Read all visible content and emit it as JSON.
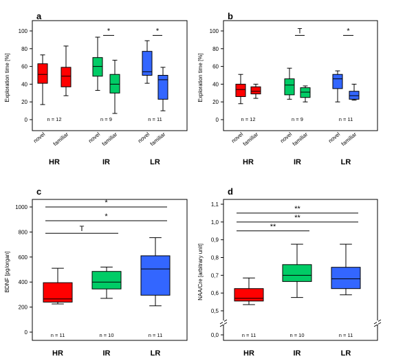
{
  "chart_data": [
    {
      "type": "box",
      "panel": "a",
      "ylabel": "Exploration time [%]",
      "ylim": [
        0,
        100
      ],
      "yticks": [
        "0",
        "20",
        "40",
        "60",
        "80",
        "100"
      ],
      "groups": [
        "HR",
        "IR",
        "LR"
      ],
      "conditions": [
        "novel",
        "familiar"
      ],
      "n_labels": [
        "n = 12",
        "n = 9",
        "n = 11"
      ],
      "boxes": [
        {
          "group": "HR",
          "condition": "novel",
          "color": "#ff0000",
          "min": 17,
          "q1": 41,
          "median": 51,
          "q3": 63,
          "max": 73
        },
        {
          "group": "HR",
          "condition": "familiar",
          "color": "#ff0000",
          "min": 27,
          "q1": 37,
          "median": 49,
          "q3": 59,
          "max": 83
        },
        {
          "group": "IR",
          "condition": "novel",
          "color": "#00cc66",
          "min": 33,
          "q1": 49,
          "median": 60,
          "q3": 70,
          "max": 93
        },
        {
          "group": "IR",
          "condition": "familiar",
          "color": "#00cc66",
          "min": 7,
          "q1": 30,
          "median": 40,
          "q3": 51,
          "max": 67
        },
        {
          "group": "LR",
          "condition": "novel",
          "color": "#3366ff",
          "min": 41,
          "q1": 50,
          "median": 54,
          "q3": 77,
          "max": 89
        },
        {
          "group": "LR",
          "condition": "familiar",
          "color": "#3366ff",
          "min": 10,
          "q1": 23,
          "median": 45,
          "q3": 50,
          "max": 59
        }
      ],
      "significance": [
        {
          "label": "*",
          "group": "IR",
          "y": 95
        },
        {
          "label": "*",
          "group": "LR",
          "y": 95
        }
      ]
    },
    {
      "type": "box",
      "panel": "b",
      "ylabel": "Exploration time [%]",
      "ylim": [
        0,
        100
      ],
      "yticks": [
        "0",
        "20",
        "40",
        "60",
        "80",
        "100"
      ],
      "groups": [
        "HR",
        "IR",
        "LR"
      ],
      "conditions": [
        "novel",
        "familiar"
      ],
      "n_labels": [
        "n = 12",
        "n = 9",
        "n = 11"
      ],
      "boxes": [
        {
          "group": "HR",
          "condition": "novel",
          "color": "#ff0000",
          "min": 18,
          "q1": 26,
          "median": 34,
          "q3": 40,
          "max": 51
        },
        {
          "group": "HR",
          "condition": "familiar",
          "color": "#ff0000",
          "min": 24,
          "q1": 29,
          "median": 32,
          "q3": 37,
          "max": 40
        },
        {
          "group": "IR",
          "condition": "novel",
          "color": "#00cc66",
          "min": 23,
          "q1": 28,
          "median": 39,
          "q3": 46,
          "max": 58
        },
        {
          "group": "IR",
          "condition": "familiar",
          "color": "#00cc66",
          "min": 20,
          "q1": 25,
          "median": 31,
          "q3": 36,
          "max": 38
        },
        {
          "group": "LR",
          "condition": "novel",
          "color": "#3366ff",
          "min": 20,
          "q1": 35,
          "median": 46,
          "q3": 51,
          "max": 55
        },
        {
          "group": "LR",
          "condition": "familiar",
          "color": "#3366ff",
          "min": 22,
          "q1": 23,
          "median": 27,
          "q3": 32,
          "max": 40
        }
      ],
      "significance": [
        {
          "label": "T",
          "group": "IR",
          "y": 95
        },
        {
          "label": "*",
          "group": "LR",
          "y": 95
        }
      ]
    },
    {
      "type": "box",
      "panel": "c",
      "ylabel": "BDNF [pg/organ]",
      "ylim": [
        0,
        1000
      ],
      "yticks": [
        "0",
        "200",
        "400",
        "600",
        "800",
        "1000"
      ],
      "groups": [
        "HR",
        "IR",
        "LR"
      ],
      "n_labels": [
        "n = 11",
        "n = 10",
        "n = 11"
      ],
      "boxes": [
        {
          "group": "HR",
          "color": "#ff0000",
          "min": 225,
          "q1": 240,
          "median": 265,
          "q3": 395,
          "max": 510
        },
        {
          "group": "IR",
          "color": "#00cc66",
          "min": 270,
          "q1": 345,
          "median": 400,
          "q3": 485,
          "max": 520
        },
        {
          "group": "LR",
          "color": "#3366ff",
          "min": 210,
          "q1": 295,
          "median": 505,
          "q3": 610,
          "max": 755
        }
      ],
      "significance": [
        {
          "label": "*",
          "from": "HR",
          "to": "LR",
          "y": 1000
        },
        {
          "label": "*",
          "from": "HR",
          "to": "LR",
          "y": 890
        },
        {
          "label": "T",
          "from": "HR",
          "to": "IR",
          "y": 790
        }
      ]
    },
    {
      "type": "box",
      "panel": "d",
      "ylabel": "NAA/Cre [arbitrary unit]",
      "ylim": [
        0.5,
        1.1
      ],
      "axis_break": true,
      "yticks": [
        "0,0",
        "0,5",
        "0,6",
        "0,7",
        "0,8",
        "0,9",
        "1,0",
        "1,1"
      ],
      "groups": [
        "HR",
        "IR",
        "LR"
      ],
      "n_labels": [
        "n = 11",
        "n = 10",
        "n = 11"
      ],
      "boxes": [
        {
          "group": "HR",
          "color": "#ff0000",
          "min": 0.535,
          "q1": 0.555,
          "median": 0.57,
          "q3": 0.625,
          "max": 0.685
        },
        {
          "group": "IR",
          "color": "#00cc66",
          "min": 0.575,
          "q1": 0.665,
          "median": 0.7,
          "q3": 0.76,
          "max": 0.875
        },
        {
          "group": "LR",
          "color": "#3366ff",
          "min": 0.59,
          "q1": 0.625,
          "median": 0.68,
          "q3": 0.745,
          "max": 0.875
        }
      ],
      "significance": [
        {
          "label": "**",
          "from": "HR",
          "to": "LR",
          "y": 1.05
        },
        {
          "label": "**",
          "from": "HR",
          "to": "LR",
          "y": 1.0
        },
        {
          "label": "**",
          "from": "HR",
          "to": "IR",
          "y": 0.95
        }
      ]
    }
  ]
}
